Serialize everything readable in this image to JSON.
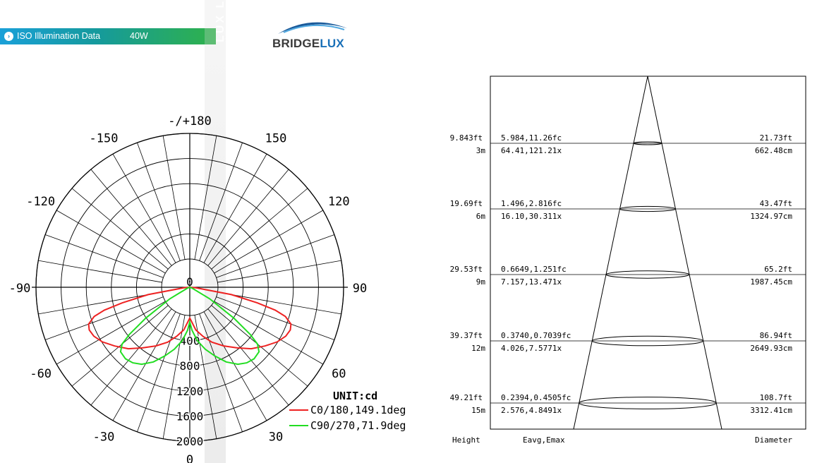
{
  "banner": {
    "title": "ISO Illumination  Data",
    "power": "40W",
    "bullet_icon": "chevron-right-icon"
  },
  "logo": {
    "text_main": "BRIDGE",
    "text_accent": "LUX",
    "mark": "®",
    "accent_color": "#1a70b8"
  },
  "watermark": {
    "text": "LUX LIGHTING"
  },
  "chart_data": [
    {
      "type": "polar",
      "unit_label": "UNIT:cd",
      "radial_ticks": [
        0,
        400,
        800,
        1200,
        1600,
        2000
      ],
      "r_max": 2000,
      "angle_labels": [
        {
          "deg": 180,
          "text": "-/+180"
        },
        {
          "deg": -150,
          "text": "-150"
        },
        {
          "deg": 150,
          "text": "150"
        },
        {
          "deg": -120,
          "text": "-120"
        },
        {
          "deg": 120,
          "text": "120"
        },
        {
          "deg": -90,
          "text": "-90"
        },
        {
          "deg": 90,
          "text": "90"
        },
        {
          "deg": -60,
          "text": "-60"
        },
        {
          "deg": 60,
          "text": "60"
        },
        {
          "deg": -30,
          "text": "-30"
        },
        {
          "deg": 30,
          "text": "30"
        },
        {
          "deg": 0,
          "text": "0"
        }
      ],
      "series": [
        {
          "name": "C0/180,149.1deg",
          "color": "#ee2222",
          "points": [
            [
              -85,
              80
            ],
            [
              -80,
              550
            ],
            [
              -77,
              900
            ],
            [
              -75,
              1150
            ],
            [
              -73,
              1300
            ],
            [
              -70,
              1400
            ],
            [
              -67,
              1420
            ],
            [
              -63,
              1400
            ],
            [
              -58,
              1340
            ],
            [
              -52,
              1240
            ],
            [
              -45,
              1130
            ],
            [
              -38,
              1000
            ],
            [
              -30,
              880
            ],
            [
              -22,
              770
            ],
            [
              -15,
              660
            ],
            [
              -8,
              560
            ],
            [
              0,
              400
            ],
            [
              8,
              560
            ],
            [
              15,
              660
            ],
            [
              22,
              770
            ],
            [
              30,
              880
            ],
            [
              38,
              1000
            ],
            [
              45,
              1130
            ],
            [
              52,
              1240
            ],
            [
              58,
              1340
            ],
            [
              63,
              1400
            ],
            [
              67,
              1420
            ],
            [
              70,
              1400
            ],
            [
              73,
              1300
            ],
            [
              75,
              1150
            ],
            [
              77,
              900
            ],
            [
              80,
              550
            ],
            [
              85,
              80
            ]
          ]
        },
        {
          "name": "C90/270,71.9deg",
          "color": "#22dd22",
          "points": [
            [
              -70,
              30
            ],
            [
              -60,
              300
            ],
            [
              -55,
              700
            ],
            [
              -52,
              1000
            ],
            [
              -50,
              1150
            ],
            [
              -47,
              1230
            ],
            [
              -42,
              1250
            ],
            [
              -37,
              1230
            ],
            [
              -32,
              1180
            ],
            [
              -26,
              1080
            ],
            [
              -20,
              950
            ],
            [
              -14,
              830
            ],
            [
              -8,
              700
            ],
            [
              -3,
              560
            ],
            [
              0,
              450
            ],
            [
              3,
              560
            ],
            [
              8,
              700
            ],
            [
              14,
              830
            ],
            [
              20,
              950
            ],
            [
              26,
              1080
            ],
            [
              32,
              1180
            ],
            [
              37,
              1230
            ],
            [
              42,
              1250
            ],
            [
              47,
              1230
            ],
            [
              50,
              1150
            ],
            [
              52,
              1000
            ],
            [
              55,
              700
            ],
            [
              60,
              300
            ],
            [
              70,
              30
            ]
          ]
        }
      ]
    },
    {
      "type": "table",
      "beam_angle_deg": 149.1,
      "rows": [
        {
          "height_ft": "9.843ft",
          "height_m": "3m",
          "fc": "5.984,11.26fc",
          "lx": "64.41,121.21x",
          "dia_ft": "21.73ft",
          "dia_cm": "662.48cm"
        },
        {
          "height_ft": "19.69ft",
          "height_m": "6m",
          "fc": "1.496,2.816fc",
          "lx": "16.10,30.311x",
          "dia_ft": "43.47ft",
          "dia_cm": "1324.97cm"
        },
        {
          "height_ft": "29.53ft",
          "height_m": "9m",
          "fc": "0.6649,1.251fc",
          "lx": "7.157,13.471x",
          "dia_ft": "65.2ft",
          "dia_cm": "1987.45cm"
        },
        {
          "height_ft": "39.37ft",
          "height_m": "12m",
          "fc": "0.3740,0.7039fc",
          "lx": "4.026,7.5771x",
          "dia_ft": "86.94ft",
          "dia_cm": "2649.93cm"
        },
        {
          "height_ft": "49.21ft",
          "height_m": "15m",
          "fc": "0.2394,0.4505fc",
          "lx": "2.576,4.8491x",
          "dia_ft": "108.7ft",
          "dia_cm": "3312.41cm"
        }
      ],
      "col_labels": {
        "height": "Height",
        "illum": "Eavg,Emax",
        "diameter": "Diameter"
      }
    }
  ]
}
